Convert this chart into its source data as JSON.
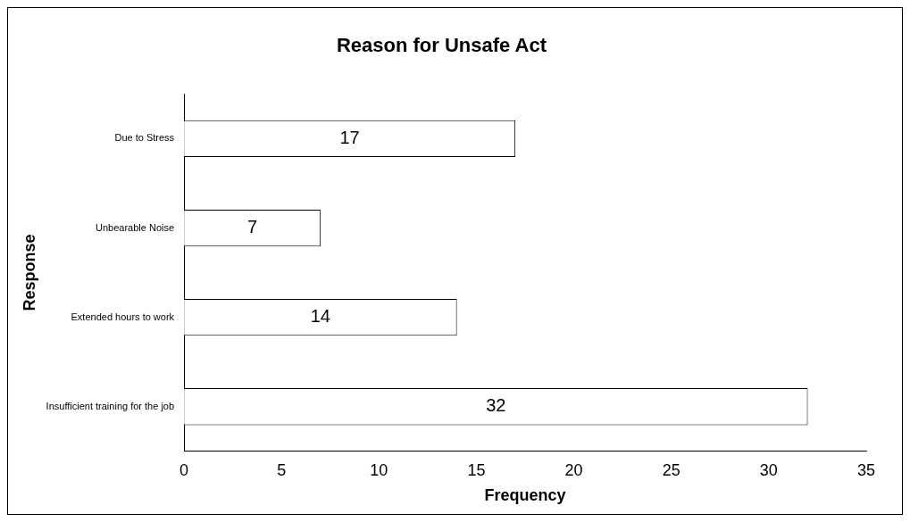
{
  "chart_data": {
    "type": "bar",
    "orientation": "horizontal",
    "title": "Reason for Unsafe Act",
    "xlabel": "Frequency",
    "ylabel": "Response",
    "categories": [
      "Due to Stress",
      "Unbearable Noise",
      "Extended hours to work",
      "Insufficient training for the job"
    ],
    "values": [
      17,
      7,
      14,
      32
    ],
    "color": "#ffffff",
    "xlim": [
      0,
      35
    ],
    "xticks": [
      0,
      5,
      10,
      15,
      20,
      25,
      30,
      35
    ],
    "grid": false,
    "data_labels": true
  }
}
